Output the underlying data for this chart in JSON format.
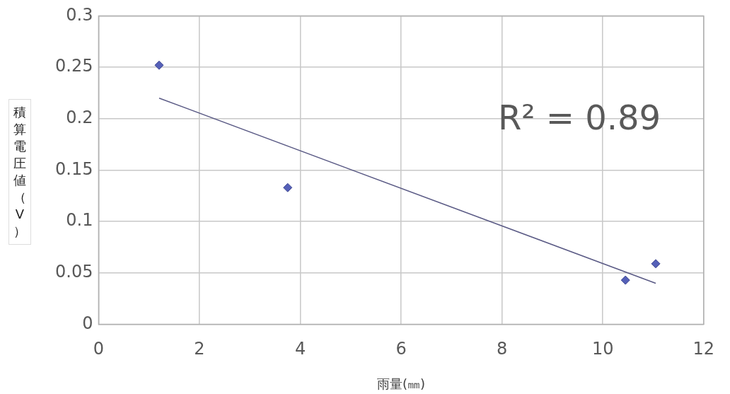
{
  "chart_data": {
    "type": "scatter",
    "xlabel": "雨量(㎜)",
    "ylabel": "積算電圧値（V）",
    "series": [
      {
        "color": "#5560b8",
        "x": [
          1.2,
          3.75,
          10.45,
          11.05
        ],
        "values": [
          0.252,
          0.133,
          0.043,
          0.059
        ],
        "marker": "diamond"
      },
      {
        "type": "line",
        "color": "#5a5a85",
        "x": [
          1.2,
          11.05
        ],
        "values": [
          0.22,
          0.04
        ],
        "marker": "none",
        "line_style": "solid"
      }
    ],
    "annotations": [
      "R² = 0.89"
    ],
    "xlim": [
      0,
      12
    ],
    "xticks": [
      0,
      2,
      4,
      6,
      8,
      10,
      12
    ],
    "ylim": [
      0,
      0.3
    ],
    "yticks": [
      0,
      0.05,
      0.1,
      0.15,
      0.2,
      0.25,
      0.3
    ],
    "grid": true,
    "legend": false
  }
}
